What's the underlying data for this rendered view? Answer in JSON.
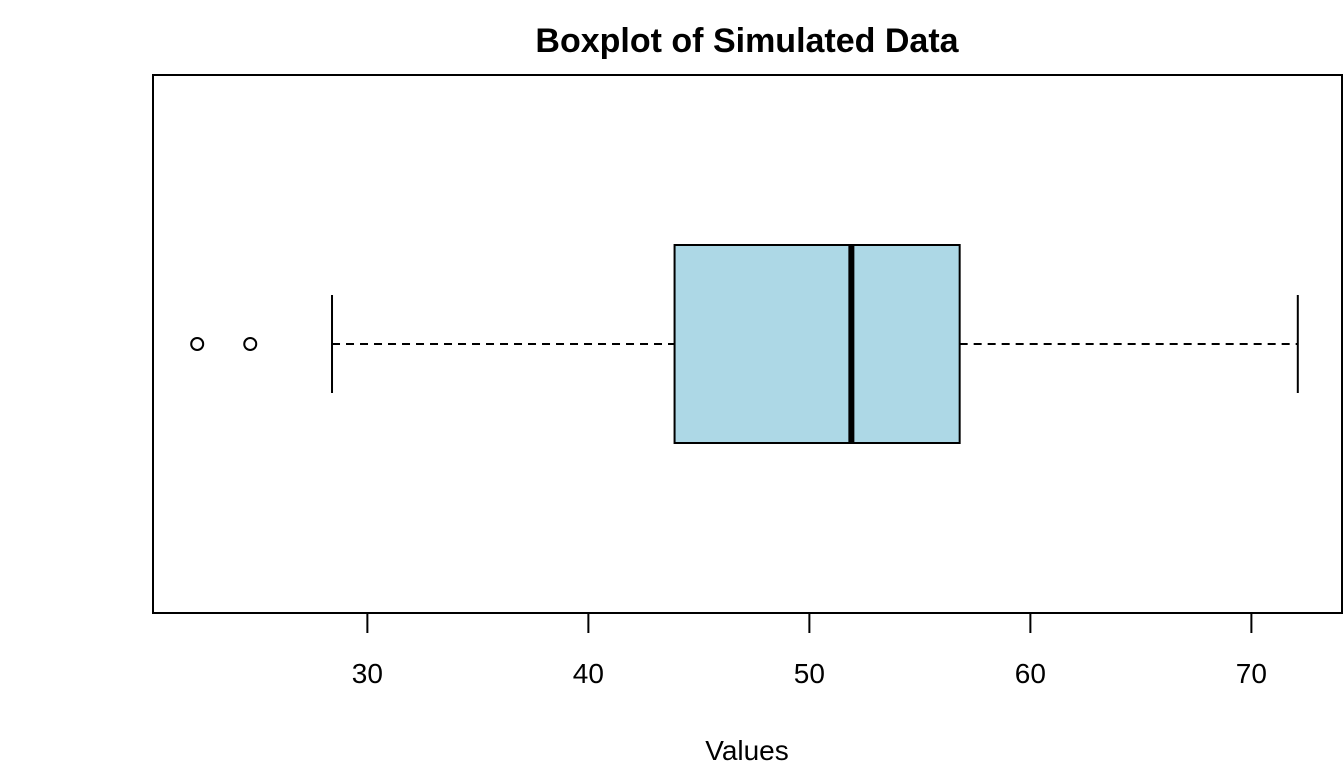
{
  "chart_data": {
    "type": "boxplot",
    "orientation": "horizontal",
    "title": "Boxplot of Simulated Data",
    "xlabel": "Values",
    "ylabel": "",
    "xlim": [
      20.3,
      74.1
    ],
    "xticks": [
      30,
      40,
      50,
      60,
      70
    ],
    "xtick_labels": [
      "30",
      "40",
      "50",
      "60",
      "70"
    ],
    "grid": false,
    "legend": "none",
    "box": {
      "whisker_low": 28.4,
      "q1": 43.9,
      "median": 51.9,
      "q3": 56.8,
      "whisker_high": 72.1,
      "outliers": [
        22.3,
        24.7
      ]
    },
    "colors": {
      "box_fill": "#add8e6",
      "stroke": "#000000",
      "background": "#ffffff"
    }
  }
}
